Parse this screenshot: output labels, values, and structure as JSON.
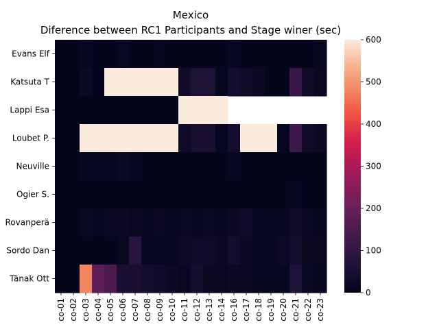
{
  "chart_data": {
    "type": "heatmap",
    "title_lines": [
      "Mexico",
      "Diference between RC1 Participants and Stage winer (sec)"
    ],
    "rows": [
      "Evans  Elf",
      "Katsuta  T",
      "Lappi  Esa",
      "Loubet  P.",
      "Neuville  ",
      "Ogier  S.",
      "Rovanperä",
      "Sordo  Dan",
      "Tänak  Ott"
    ],
    "columns": [
      "co-01",
      "co-02",
      "co-03",
      "co-04",
      "co-05",
      "co-06",
      "co-07",
      "co-08",
      "co-09",
      "co-10",
      "co-11",
      "co-12",
      "co-13",
      "co-14",
      "co-16",
      "co-17",
      "co-18",
      "co-19",
      "co-20",
      "co-21",
      "co-22",
      "co-23"
    ],
    "values": [
      [
        0,
        0,
        10,
        5,
        5,
        15,
        5,
        5,
        8,
        5,
        5,
        5,
        5,
        5,
        10,
        5,
        5,
        5,
        5,
        5,
        5,
        12
      ],
      [
        0,
        0,
        20,
        5,
        600,
        600,
        600,
        600,
        600,
        600,
        30,
        60,
        60,
        10,
        40,
        30,
        20,
        5,
        5,
        110,
        30,
        15
      ],
      [
        0,
        0,
        0,
        0,
        0,
        0,
        0,
        0,
        0,
        0,
        600,
        600,
        600,
        600,
        null,
        null,
        null,
        null,
        null,
        null,
        null,
        null
      ],
      [
        0,
        0,
        600,
        600,
        600,
        600,
        600,
        600,
        600,
        600,
        30,
        50,
        50,
        10,
        40,
        600,
        600,
        600,
        10,
        120,
        30,
        20
      ],
      [
        0,
        0,
        10,
        10,
        10,
        20,
        10,
        5,
        5,
        5,
        5,
        5,
        5,
        5,
        10,
        5,
        5,
        5,
        5,
        5,
        5,
        5
      ],
      [
        0,
        0,
        5,
        5,
        5,
        5,
        5,
        5,
        5,
        5,
        5,
        5,
        5,
        5,
        5,
        5,
        5,
        5,
        5,
        10,
        5,
        5
      ],
      [
        0,
        0,
        15,
        10,
        20,
        20,
        15,
        10,
        15,
        10,
        15,
        10,
        15,
        10,
        20,
        30,
        10,
        10,
        10,
        30,
        15,
        10
      ],
      [
        0,
        0,
        5,
        5,
        5,
        15,
        80,
        10,
        10,
        10,
        25,
        30,
        30,
        20,
        40,
        20,
        10,
        10,
        25,
        40,
        20,
        15
      ],
      [
        0,
        0,
        480,
        180,
        150,
        50,
        50,
        40,
        30,
        20,
        15,
        40,
        20,
        15,
        20,
        15,
        10,
        10,
        10,
        60,
        15,
        10
      ]
    ],
    "colorbar": {
      "min": 0,
      "max": 600,
      "ticks": [
        0,
        100,
        200,
        300,
        400,
        500,
        600
      ]
    },
    "colormap": "rocket"
  }
}
